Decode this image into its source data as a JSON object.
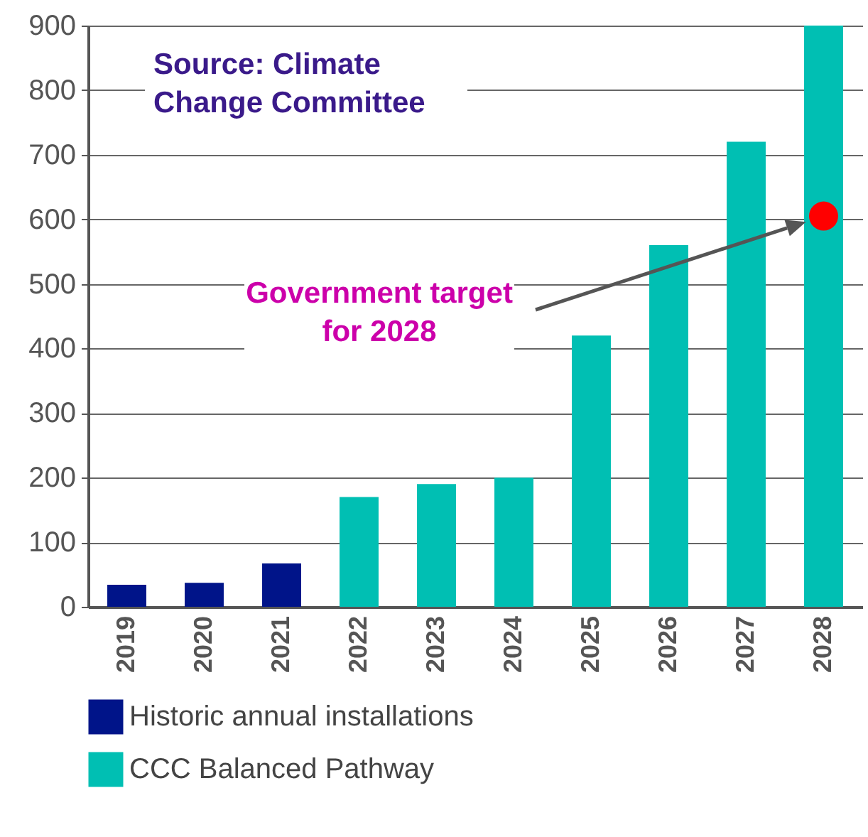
{
  "chart_data": {
    "type": "bar",
    "categories": [
      "2019",
      "2020",
      "2021",
      "2022",
      "2023",
      "2024",
      "2025",
      "2026",
      "2027",
      "2028"
    ],
    "series": [
      {
        "name": "Historic annual installations",
        "color": "#001489",
        "values": [
          34,
          37,
          67,
          null,
          null,
          null,
          null,
          null,
          null,
          null
        ]
      },
      {
        "name": "CCC Balanced Pathway",
        "color": "#00bfb3",
        "values": [
          null,
          null,
          null,
          170,
          190,
          200,
          420,
          560,
          720,
          900
        ]
      },
      {
        "type": "scatter",
        "color": "#ff0000",
        "values": [
          null,
          null,
          null,
          null,
          null,
          null,
          null,
          null,
          null,
          605
        ]
      }
    ],
    "ylim": [
      0,
      900
    ],
    "yticks": [
      0,
      100,
      200,
      300,
      400,
      500,
      600,
      700,
      800,
      900
    ],
    "grid": "y",
    "legend": "bottom",
    "annotations": [
      "Source: Climate Change Committee",
      "Government target for 2028"
    ]
  }
}
